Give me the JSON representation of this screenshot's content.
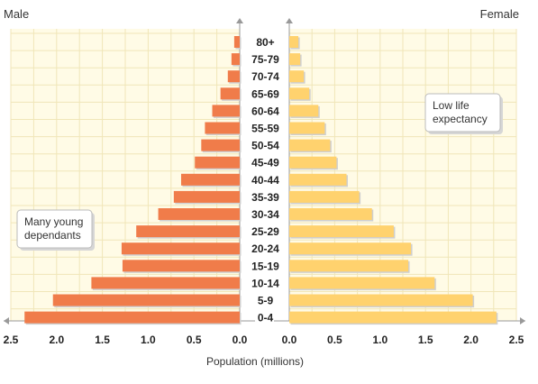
{
  "chart_data": {
    "type": "bar",
    "orientation": "horizontal",
    "subtype": "population-pyramid",
    "left_label": "Male",
    "right_label": "Female",
    "xlabel": "Population (millions)",
    "xlim": [
      0,
      2.5
    ],
    "ticks": [
      {
        "value": 2.5,
        "label": "2.5"
      },
      {
        "value": 2.0,
        "label": "2.0"
      },
      {
        "value": 1.5,
        "label": "1.5"
      },
      {
        "value": 1.0,
        "label": "1.0"
      },
      {
        "value": 0.5,
        "label": "0.5"
      },
      {
        "value": 0.0,
        "label": "0.0"
      }
    ],
    "grid": true,
    "categories": [
      "80+",
      "75-79",
      "70-74",
      "65-69",
      "60-64",
      "55-59",
      "50-54",
      "45-49",
      "40-44",
      "35-39",
      "30-34",
      "25-29",
      "20-24",
      "15-19",
      "10-14",
      "5-9",
      "0-4"
    ],
    "series": [
      {
        "name": "Male",
        "side": "left",
        "color": "#f07c4a",
        "values": [
          0.06,
          0.09,
          0.13,
          0.21,
          0.3,
          0.38,
          0.42,
          0.49,
          0.64,
          0.72,
          0.89,
          1.13,
          1.29,
          1.28,
          1.62,
          2.04,
          2.35
        ]
      },
      {
        "name": "Female",
        "side": "right",
        "color": "#ffd26e",
        "values": [
          0.1,
          0.12,
          0.16,
          0.22,
          0.32,
          0.39,
          0.45,
          0.52,
          0.63,
          0.77,
          0.91,
          1.15,
          1.34,
          1.31,
          1.6,
          2.02,
          2.28
        ]
      }
    ],
    "annotations": [
      {
        "text_lines": [
          "Many young",
          "dependants"
        ],
        "placement": "lower-left"
      },
      {
        "text_lines": [
          "Low life",
          "expectancy"
        ],
        "placement": "upper-right"
      }
    ]
  },
  "colors": {
    "panel_bg": "#fffbe6",
    "grid": "#f0e6b8",
    "axis": "#999999",
    "male": "#f07c4a",
    "female": "#ffd26e"
  }
}
